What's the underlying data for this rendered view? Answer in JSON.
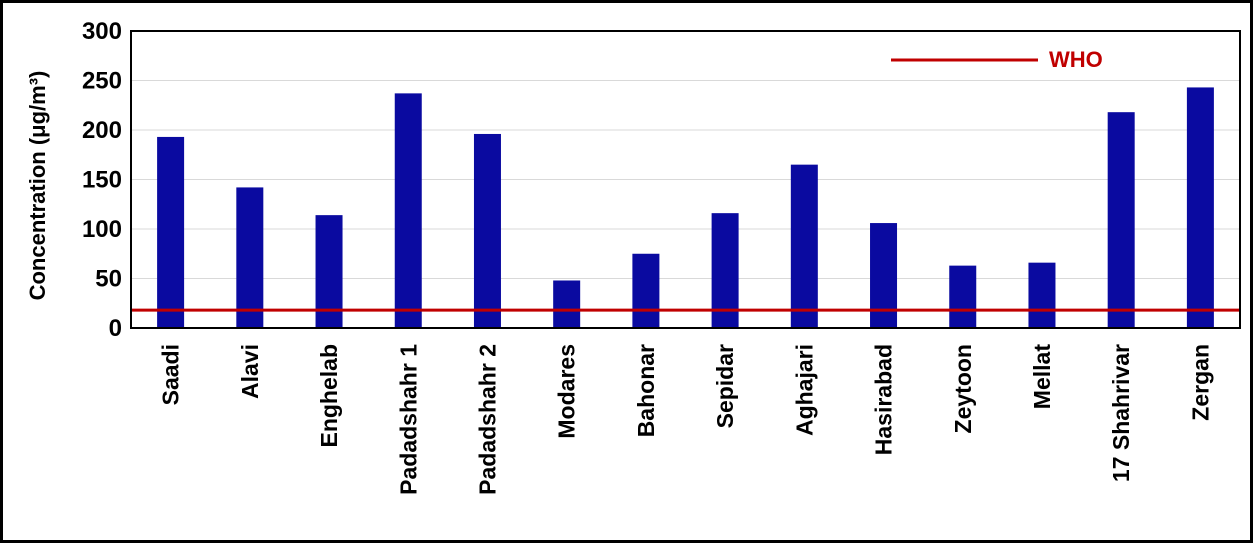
{
  "chart_data": {
    "type": "bar",
    "categories": [
      "Saadi",
      "Alavi",
      "Enghelab",
      "Padadshahr 1",
      "Padadshahr 2",
      "Modares",
      "Bahonar",
      "Sepidar",
      "Aghajari",
      "Hasirabad",
      "Zeytoon",
      "Mellat",
      "17 Shahrivar",
      "Zergan"
    ],
    "values": [
      193,
      142,
      114,
      237,
      196,
      48,
      75,
      116,
      165,
      106,
      63,
      66,
      218,
      243
    ],
    "ylabel": "Concentration (μg/m³)",
    "ylim": [
      0,
      300
    ],
    "yticks": [
      0,
      50,
      100,
      150,
      200,
      250,
      300
    ],
    "grid": true,
    "reference_line": {
      "label": "WHO",
      "value": 18
    },
    "legend_position": "top-right",
    "colors": {
      "bar": "#0a0aa0",
      "who": "#c00000",
      "grid": "#d9d9d9"
    }
  }
}
